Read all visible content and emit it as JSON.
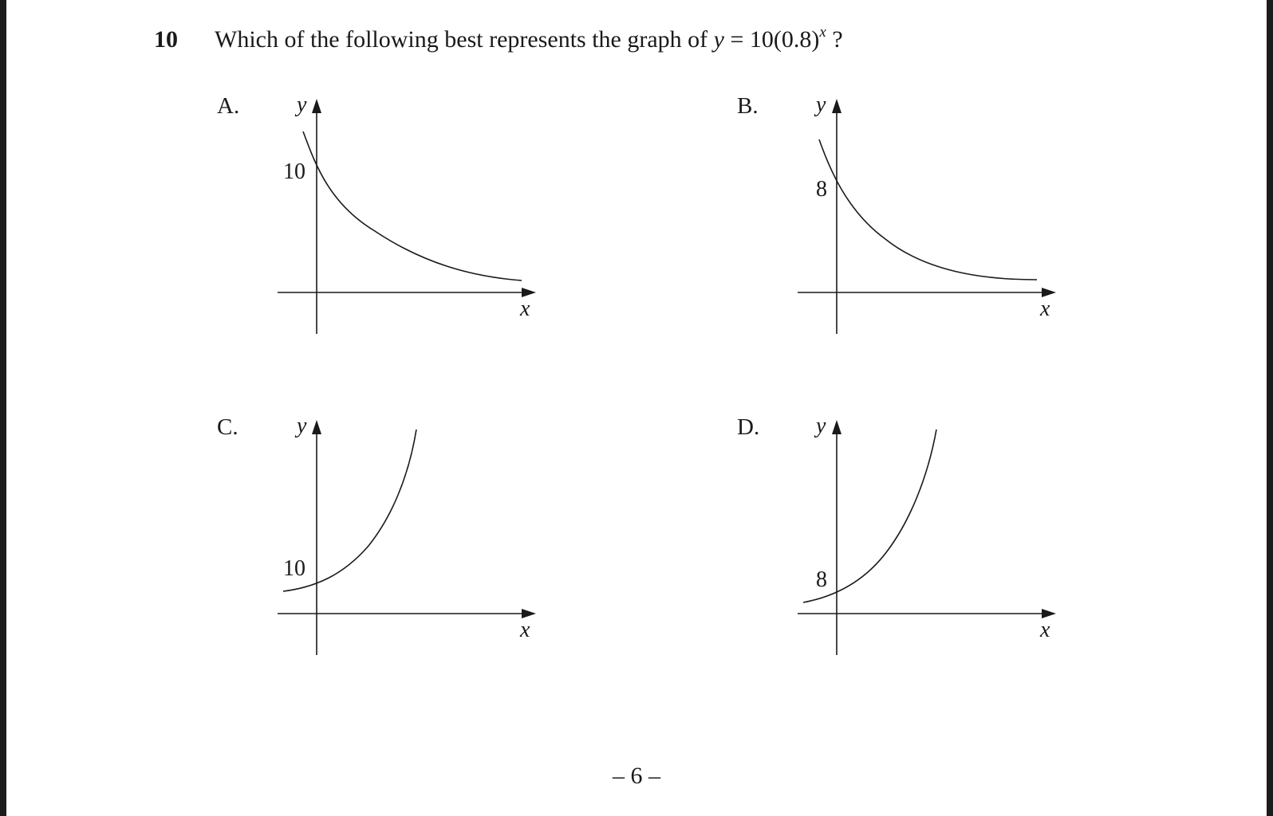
{
  "question": {
    "number": "10",
    "text_before": "Which of the following best represents the graph of ",
    "equation_y": "y",
    "equation_body": " = 10(0.8)",
    "equation_exponent": "x",
    "text_after": " ?"
  },
  "options": [
    {
      "label": "A.",
      "y_axis_label": "y",
      "x_axis_label": "x",
      "y_intercept_label": "10"
    },
    {
      "label": "B.",
      "y_axis_label": "y",
      "x_axis_label": "x",
      "y_intercept_label": "8"
    },
    {
      "label": "C.",
      "y_axis_label": "y",
      "x_axis_label": "x",
      "y_intercept_label": "10"
    },
    {
      "label": "D.",
      "y_axis_label": "y",
      "x_axis_label": "x",
      "y_intercept_label": "8"
    }
  ],
  "footer": {
    "page_number": "– 6 –"
  }
}
